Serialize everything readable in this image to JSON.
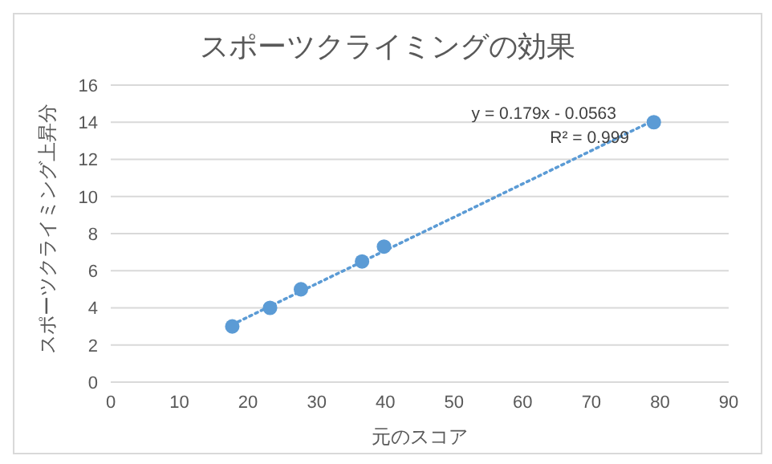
{
  "chart_data": {
    "type": "scatter",
    "title": "スポーツクライミングの効果",
    "xlabel": "元のスコア",
    "ylabel": "スポーツクライミング上昇分",
    "series": [
      {
        "color": "#5b9bd5",
        "x": [
          17.7,
          23.2,
          27.7,
          36.6,
          39.8,
          79.1
        ],
        "values": [
          3.0,
          4.0,
          5.0,
          6.5,
          7.3,
          14.0
        ],
        "marker": "circle"
      },
      {
        "type": "line",
        "color": "#5b9bd5",
        "x": [
          17.7,
          79.1
        ],
        "values": [
          3.1,
          14.1
        ],
        "line_style": "dotted",
        "marker": "none"
      }
    ],
    "xlim": [
      0,
      90
    ],
    "xticks": [
      0,
      10,
      20,
      30,
      40,
      50,
      60,
      70,
      80,
      90
    ],
    "ylim": [
      0,
      16
    ],
    "yticks": [
      0,
      2,
      4,
      6,
      8,
      10,
      12,
      14,
      16
    ],
    "grid": "y",
    "annotations": [
      "y = 0.179x - 0.0563",
      "R² = 0.999"
    ]
  }
}
